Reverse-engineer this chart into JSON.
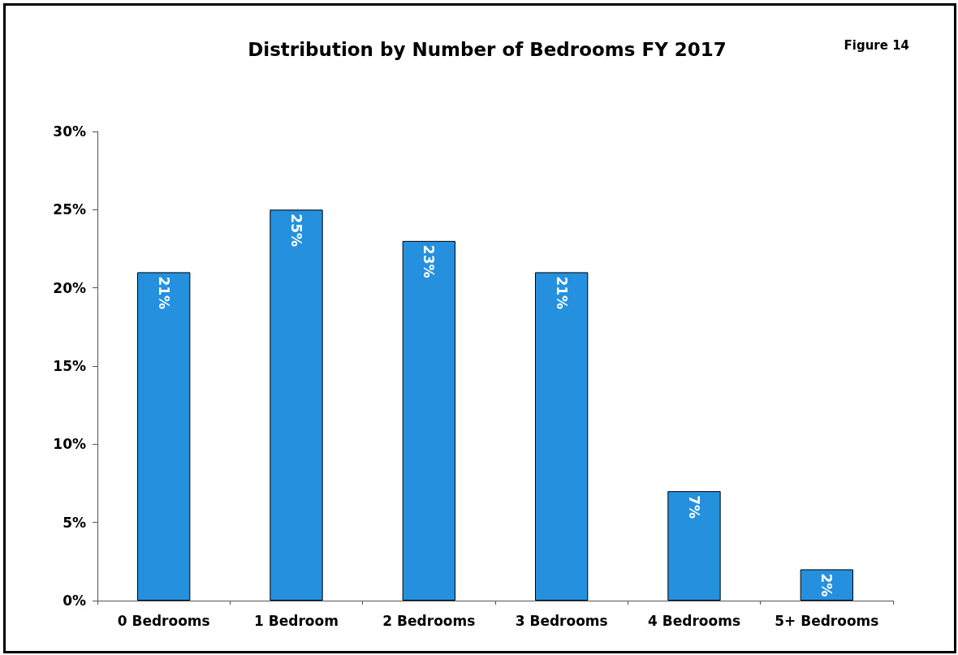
{
  "chart_data": {
    "type": "bar",
    "title": "Distribution by Number of Bedrooms FY 2017",
    "annotations": [
      "Figure 14"
    ],
    "categories": [
      "0 Bedrooms",
      "1 Bedroom",
      "2 Bedrooms",
      "3 Bedrooms",
      "4 Bedrooms",
      "5+ Bedrooms"
    ],
    "values": [
      21,
      25,
      23,
      21,
      7,
      2
    ],
    "value_labels": [
      "21%",
      "25%",
      "23%",
      "21%",
      "7%",
      "2%"
    ],
    "color": "#2490de",
    "ylim": [
      0,
      30
    ],
    "yticks": [
      {
        "value": 0,
        "label": "0%"
      },
      {
        "value": 5,
        "label": "5%"
      },
      {
        "value": 10,
        "label": "10%"
      },
      {
        "value": 15,
        "label": "15%"
      },
      {
        "value": 20,
        "label": "20%"
      },
      {
        "value": 25,
        "label": "25%"
      },
      {
        "value": 30,
        "label": "30%"
      }
    ],
    "grid": false
  }
}
